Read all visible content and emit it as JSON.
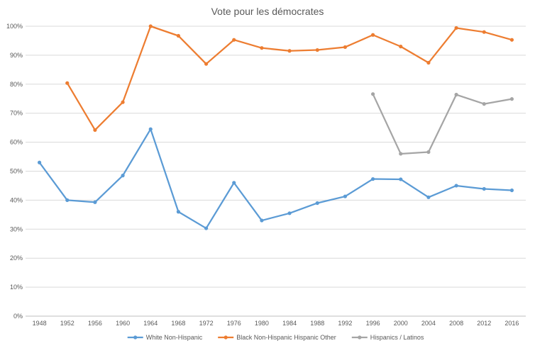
{
  "chart_data": {
    "type": "line",
    "title": "Vote pour les démocrates",
    "xlabel": "",
    "ylabel": "",
    "categories": [
      "1948",
      "1952",
      "1956",
      "1960",
      "1964",
      "1968",
      "1972",
      "1976",
      "1980",
      "1984",
      "1988",
      "1992",
      "1996",
      "2000",
      "2004",
      "2008",
      "2012",
      "2016"
    ],
    "ylim": [
      0,
      100
    ],
    "y_ticks": [
      "0%",
      "10%",
      "20%",
      "30%",
      "40%",
      "50%",
      "60%",
      "70%",
      "80%",
      "90%",
      "100%"
    ],
    "grid": true,
    "legend_position": "bottom",
    "series": [
      {
        "name": "White Non-Hispanic",
        "color": "#5B9BD5",
        "values": [
          53,
          40,
          39.3,
          48.5,
          64.5,
          36,
          30.3,
          46,
          33,
          35.5,
          39,
          41.3,
          47.3,
          47.2,
          41,
          45,
          43.9,
          43.4
        ]
      },
      {
        "name": "Black Non-Hispanic Hispanic Other",
        "color": "#ED7D31",
        "values": [
          null,
          80.4,
          64.2,
          73.8,
          100,
          96.7,
          87,
          95.3,
          92.5,
          91.5,
          91.8,
          92.8,
          97,
          93,
          87.4,
          99.4,
          98,
          95.3
        ]
      },
      {
        "name": "Hispanics / Latinos",
        "color": "#A5A5A5",
        "values": [
          null,
          null,
          null,
          null,
          null,
          null,
          null,
          null,
          null,
          null,
          null,
          null,
          76.6,
          56,
          56.6,
          76.4,
          73.2,
          74.9
        ]
      }
    ]
  }
}
